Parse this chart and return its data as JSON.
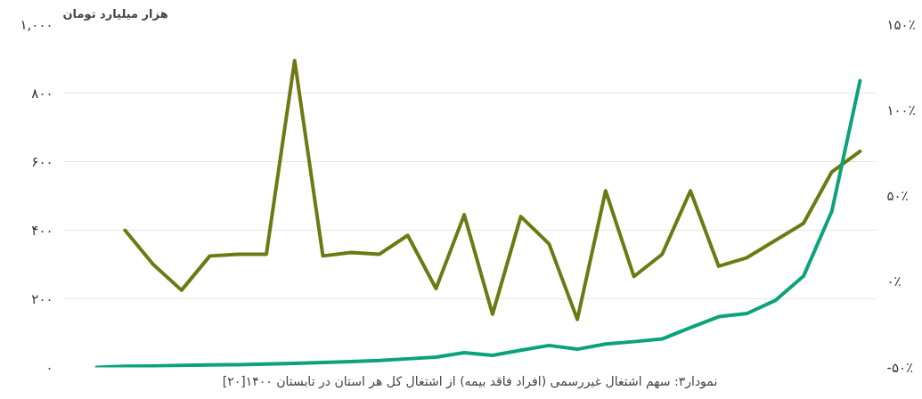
{
  "chart_data": {
    "type": "line",
    "ylabel": "هزار میلیارد تومان",
    "annotations": [
      "نمودار۳: سهم اشتغال غیررسمی (افراد فاقد بیمه) از اشتغال کل هر استان در تابستان ۱۴۰۰[۲۰]"
    ],
    "categories": [
      null,
      null,
      null,
      null,
      null,
      null,
      null,
      null,
      null,
      null,
      null,
      null,
      null,
      null,
      null,
      null,
      null,
      null,
      null,
      null,
      null,
      null,
      null,
      null,
      null,
      null,
      null,
      null
    ],
    "ylim": [
      0,
      1000
    ],
    "yticks": [
      {
        "value": 0,
        "label": "۰"
      },
      {
        "value": 200,
        "label": "۲۰۰"
      },
      {
        "value": 400,
        "label": "۴۰۰"
      },
      {
        "value": 600,
        "label": "۶۰۰"
      },
      {
        "value": 800,
        "label": "۸۰۰"
      },
      {
        "value": 1000,
        "label": "۱,۰۰۰"
      }
    ],
    "y2lim": [
      -50,
      150
    ],
    "y2ticks": [
      {
        "value": -50,
        "label": "-۵۰٪"
      },
      {
        "value": 0,
        "label": "۰٪"
      },
      {
        "value": 50,
        "label": "۵۰٪"
      },
      {
        "value": 100,
        "label": "۱۰۰٪"
      },
      {
        "value": 150,
        "label": "۱۵۰٪"
      }
    ],
    "grid": "y",
    "series": [
      {
        "color": "#6b7a12",
        "axis": "y2",
        "values": [
          null,
          30,
          10,
          -5,
          15,
          16,
          16,
          129,
          15,
          17,
          16,
          27,
          -4,
          39,
          -19,
          38,
          22,
          -22,
          53,
          3,
          16,
          53,
          9,
          14,
          24,
          34,
          64,
          76
        ]
      },
      {
        "color": "#0aa37a",
        "values": [
          0,
          3,
          4,
          6,
          7,
          8,
          10,
          12,
          14,
          17,
          20,
          25,
          30,
          43,
          35,
          50,
          64,
          53,
          68,
          75,
          83,
          116,
          148,
          157,
          195,
          266,
          455,
          836
        ]
      }
    ]
  }
}
